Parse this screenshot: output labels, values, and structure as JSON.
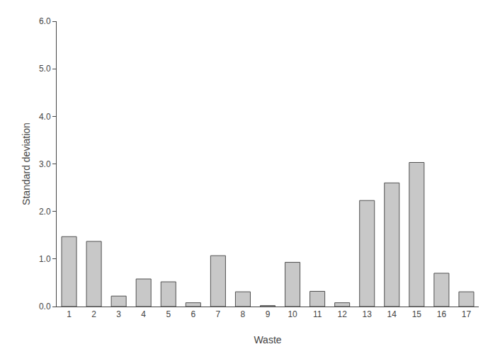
{
  "chart_data": {
    "type": "bar",
    "xlabel": "Waste",
    "ylabel": "Standard deviation",
    "categories": [
      1,
      2,
      3,
      4,
      5,
      6,
      7,
      8,
      9,
      10,
      11,
      12,
      13,
      14,
      15,
      16,
      17
    ],
    "values": [
      1.47,
      1.37,
      0.22,
      0.58,
      0.52,
      0.08,
      1.07,
      0.31,
      0.02,
      0.93,
      0.32,
      0.08,
      2.23,
      2.6,
      3.03,
      0.7,
      0.31
    ],
    "color": "#c8c8c8",
    "ylim": [
      0.0,
      6.0
    ],
    "yticks": [
      {
        "value": 0.0,
        "label": "0.0"
      },
      {
        "value": 1.0,
        "label": "1.0"
      },
      {
        "value": 2.0,
        "label": "2.0"
      },
      {
        "value": 3.0,
        "label": "3.0"
      },
      {
        "value": 4.0,
        "label": "4.0"
      },
      {
        "value": 5.0,
        "label": "5.0"
      },
      {
        "value": 6.0,
        "label": "6.0"
      }
    ],
    "grid": false
  }
}
